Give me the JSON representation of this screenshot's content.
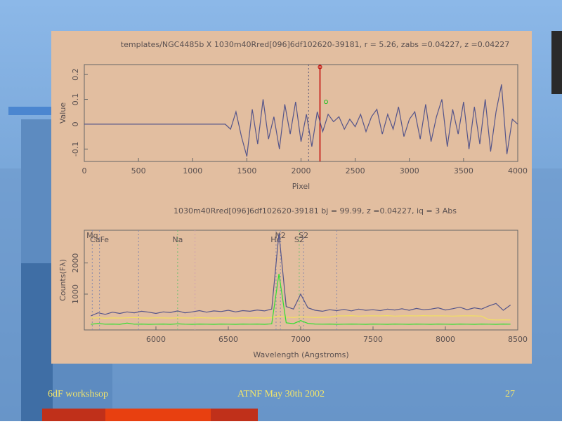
{
  "footer": {
    "left": "6dF workshsop",
    "center": "ATNF May 30th 2002",
    "page": "27"
  },
  "chart_data": [
    {
      "type": "line",
      "title": "templates/NGC4485b X 1030m40Rred[096]6df102620-39181, r =  5.26, zabs =0.04227, z =0.04227",
      "xlabel": "Pixel",
      "ylabel": "Value",
      "xlim": [
        0,
        4000
      ],
      "ylim": [
        -0.15,
        0.24
      ],
      "xticks": [
        0,
        500,
        1000,
        1500,
        2000,
        2500,
        3000,
        3500,
        4000
      ],
      "yticks": [
        -0.1,
        0,
        0.1,
        0.2
      ],
      "x": [
        0,
        1300,
        1350,
        1400,
        1450,
        1500,
        1550,
        1600,
        1650,
        1700,
        1750,
        1800,
        1850,
        1900,
        1950,
        2000,
        2050,
        2100,
        2150,
        2200,
        2250,
        2300,
        2350,
        2400,
        2450,
        2500,
        2550,
        2600,
        2650,
        2700,
        2750,
        2800,
        2850,
        2900,
        2950,
        3000,
        3050,
        3100,
        3150,
        3200,
        3250,
        3300,
        3350,
        3400,
        3450,
        3500,
        3550,
        3600,
        3650,
        3700,
        3750,
        3800,
        3850,
        3900,
        3950,
        4000
      ],
      "series": [
        {
          "color": "#55558a",
          "values": [
            0,
            0,
            -0.02,
            0.05,
            -0.05,
            -0.13,
            0.06,
            -0.08,
            0.1,
            -0.06,
            0.03,
            -0.1,
            0.08,
            -0.04,
            0.09,
            -0.07,
            0.04,
            -0.09,
            0.05,
            -0.03,
            0.04,
            0.01,
            0.03,
            -0.02,
            0.02,
            -0.01,
            0.04,
            -0.03,
            0.03,
            0.06,
            -0.04,
            0.04,
            -0.02,
            0.07,
            -0.05,
            0.02,
            0.05,
            -0.06,
            0.08,
            -0.07,
            0.03,
            0.1,
            -0.09,
            0.06,
            -0.04,
            0.09,
            -0.1,
            0.07,
            -0.08,
            0.1,
            -0.11,
            0.05,
            0.16,
            -0.12,
            0.02,
            0
          ]
        }
      ],
      "markers": [
        {
          "x": 2070,
          "color": "#555577"
        },
        {
          "x": 2175,
          "color": "#c00000"
        }
      ],
      "points": [
        {
          "x": 2175,
          "y": 0.23,
          "color": "#c00000"
        },
        {
          "x": 2230,
          "y": 0.09,
          "color": "#20c020"
        }
      ]
    },
    {
      "type": "line",
      "title": "1030m40Rred[096]6df102620-39181        bj = 99.99, z =0.04227, iq =  3 Abs",
      "xlabel": "Wavelength (Angstroms)",
      "ylabel": "Counts(Fλ)",
      "xlim": [
        5505,
        8500
      ],
      "ylim": [
        -150,
        3050
      ],
      "xticks": [
        6000,
        6500,
        7000,
        7500,
        8000,
        8500
      ],
      "yticks": [
        1000,
        2000
      ],
      "x": [
        5550,
        5600,
        5650,
        5700,
        5750,
        5800,
        5850,
        5900,
        5950,
        6000,
        6050,
        6100,
        6150,
        6200,
        6250,
        6300,
        6350,
        6400,
        6450,
        6500,
        6550,
        6600,
        6650,
        6700,
        6750,
        6800,
        6850,
        6900,
        6950,
        7000,
        7050,
        7100,
        7150,
        7200,
        7250,
        7300,
        7350,
        7400,
        7450,
        7500,
        7550,
        7600,
        7650,
        7700,
        7750,
        7800,
        7850,
        7900,
        7950,
        8000,
        8050,
        8100,
        8150,
        8200,
        8250,
        8300,
        8350,
        8400,
        8450
      ],
      "series": [
        {
          "color": "#55558a",
          "values": [
            300,
            400,
            350,
            420,
            380,
            430,
            400,
            450,
            420,
            380,
            430,
            410,
            460,
            400,
            430,
            470,
            420,
            460,
            440,
            480,
            430,
            470,
            450,
            490,
            460,
            520,
            2950,
            600,
            520,
            1000,
            560,
            480,
            450,
            500,
            470,
            510,
            460,
            520,
            480,
            500,
            470,
            520,
            490,
            530,
            480,
            540,
            500,
            520,
            560,
            490,
            530,
            580,
            500,
            560,
            520,
            620,
            700,
            480,
            650
          ]
        },
        {
          "color": "#f2e060",
          "values": [
            230,
            240,
            225,
            235,
            230,
            240,
            250,
            235,
            230,
            240,
            235,
            230,
            240,
            235,
            230,
            245,
            235,
            230,
            240,
            235,
            230,
            240,
            235,
            240,
            230,
            245,
            300,
            260,
            250,
            270,
            260,
            250,
            255,
            260,
            300,
            300,
            310,
            295,
            300,
            305,
            300,
            310,
            295,
            300,
            305,
            300,
            310,
            300,
            305,
            300,
            295,
            300,
            305,
            300,
            295,
            180,
            170,
            175,
            170
          ]
        },
        {
          "color": "#30e030",
          "values": [
            30,
            60,
            35,
            40,
            30,
            70,
            35,
            40,
            30,
            35,
            40,
            30,
            45,
            35,
            30,
            40,
            35,
            30,
            40,
            35,
            30,
            40,
            35,
            40,
            30,
            45,
            1650,
            80,
            50,
            150,
            60,
            40,
            35,
            40,
            30,
            35,
            40,
            35,
            30,
            40,
            35,
            30,
            40,
            35,
            30,
            40,
            35,
            30,
            40,
            35,
            30,
            40,
            35,
            30,
            40,
            35,
            30,
            40,
            35
          ]
        }
      ],
      "markers": [
        {
          "x": 5560,
          "label": "Mg",
          "color": "#8888aa"
        },
        {
          "x": 5610,
          "label": "CaFe",
          "color": "#8888aa"
        },
        {
          "x": 5880,
          "color": "#8888aa"
        },
        {
          "x": 6150,
          "label": "Na",
          "color": "#70c070"
        },
        {
          "x": 6270,
          "color": "#d0a0b0"
        },
        {
          "x": 6830,
          "label": "Hα",
          "color": "#8888aa"
        },
        {
          "x": 6860,
          "label": "N2",
          "color": "#8888aa"
        },
        {
          "x": 6990,
          "label": "S2",
          "color": "#70c070"
        },
        {
          "x": 7020,
          "label": "S2",
          "color": "#8888aa"
        },
        {
          "x": 7250,
          "color": "#8888aa"
        }
      ]
    }
  ]
}
